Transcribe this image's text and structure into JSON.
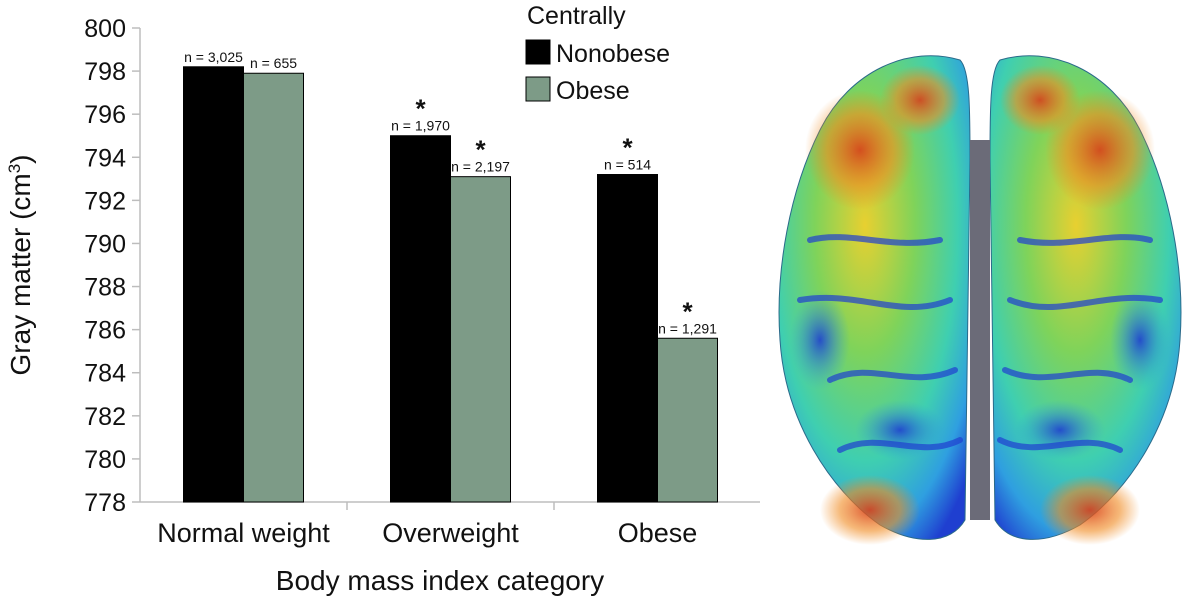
{
  "chart_data": {
    "type": "bar",
    "title": "",
    "xlabel": "Body mass index category",
    "ylabel": "Gray matter (cm",
    "ylabel_superscript": "3",
    "ylabel_suffix": ")",
    "ylim": [
      778,
      800
    ],
    "yticks": [
      "778",
      "780",
      "782",
      "784",
      "786",
      "788",
      "790",
      "792",
      "794",
      "796",
      "798",
      "800"
    ],
    "categories": [
      "Normal weight",
      "Overweight",
      "Obese"
    ],
    "legend": {
      "title": "Centrally",
      "position": "top-right"
    },
    "series": [
      {
        "name": "Nonobese",
        "color": "#000000",
        "values": [
          798.2,
          795.0,
          793.2
        ],
        "labels": [
          "n = 3,025",
          "n = 1,970",
          "n = 514"
        ],
        "significant": [
          false,
          true,
          true
        ]
      },
      {
        "name": "Obese",
        "color": "#7d9b87",
        "values": [
          797.9,
          793.1,
          785.6
        ],
        "labels": [
          "n = 655",
          "n = 2,197",
          "n = 1,291"
        ],
        "significant": [
          false,
          true,
          true
        ]
      }
    ],
    "significance_marker": "*"
  },
  "figure": {
    "image": "brain-cortex-heatmap",
    "colors": [
      "#1f3fd0",
      "#2f9fe0",
      "#3fcfb0",
      "#7fd35a",
      "#e8d030",
      "#f08a20",
      "#d8401a"
    ]
  }
}
